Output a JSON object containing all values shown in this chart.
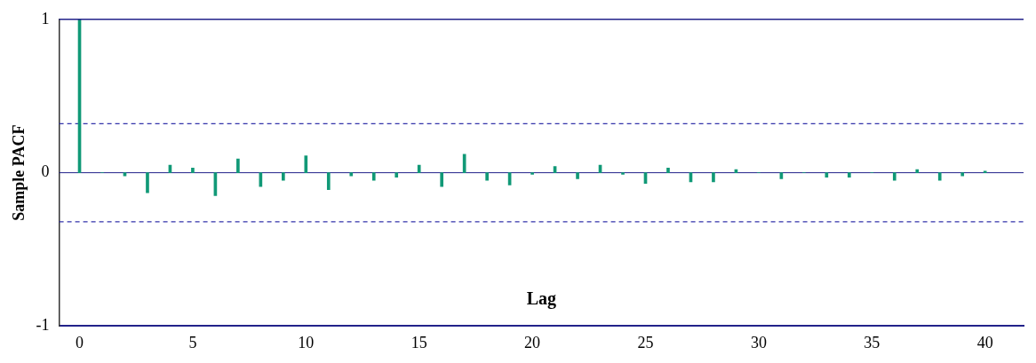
{
  "chart_data": {
    "type": "bar",
    "xlabel": "Lag",
    "ylabel": "Sample PACF",
    "x": [
      0,
      1,
      2,
      3,
      4,
      5,
      6,
      7,
      8,
      9,
      10,
      11,
      12,
      13,
      14,
      15,
      16,
      17,
      18,
      19,
      20,
      21,
      22,
      23,
      24,
      25,
      26,
      27,
      28,
      29,
      30,
      31,
      32,
      33,
      34,
      35,
      36,
      37,
      38,
      39,
      40
    ],
    "series": [
      {
        "color": "#119977",
        "values": [
          1,
          0,
          -0.02,
          -0.13,
          0.05,
          0.03,
          -0.15,
          0.09,
          -0.09,
          -0.05,
          0.11,
          -0.11,
          -0.02,
          -0.05,
          -0.03,
          0.05,
          -0.09,
          0.12,
          -0.05,
          -0.08,
          -0.01,
          0.04,
          -0.04,
          0.05,
          -0.01,
          -0.07,
          0.03,
          -0.06,
          -0.06,
          0.02,
          0,
          -0.04,
          0,
          -0.03,
          -0.03,
          0,
          -0.05,
          0.02,
          -0.05,
          -0.02,
          0.01
        ]
      }
    ],
    "xlim": [
      -0.9,
      41.7
    ],
    "ylim": [
      -1,
      1
    ],
    "xticks": [
      0,
      5,
      10,
      15,
      20,
      25,
      30,
      35,
      40
    ],
    "yticks": [
      -1,
      0,
      1
    ],
    "ref_lines": [
      {
        "axis": "y",
        "value": 0.32,
        "color": "#3333aa",
        "line_style": "dashed"
      },
      {
        "axis": "y",
        "value": -0.32,
        "color": "#3333aa",
        "line_style": "dashed"
      },
      {
        "axis": "y",
        "value": 0,
        "color": "#22228a",
        "line_style": "solid"
      }
    ],
    "grid": false,
    "legend": false
  }
}
